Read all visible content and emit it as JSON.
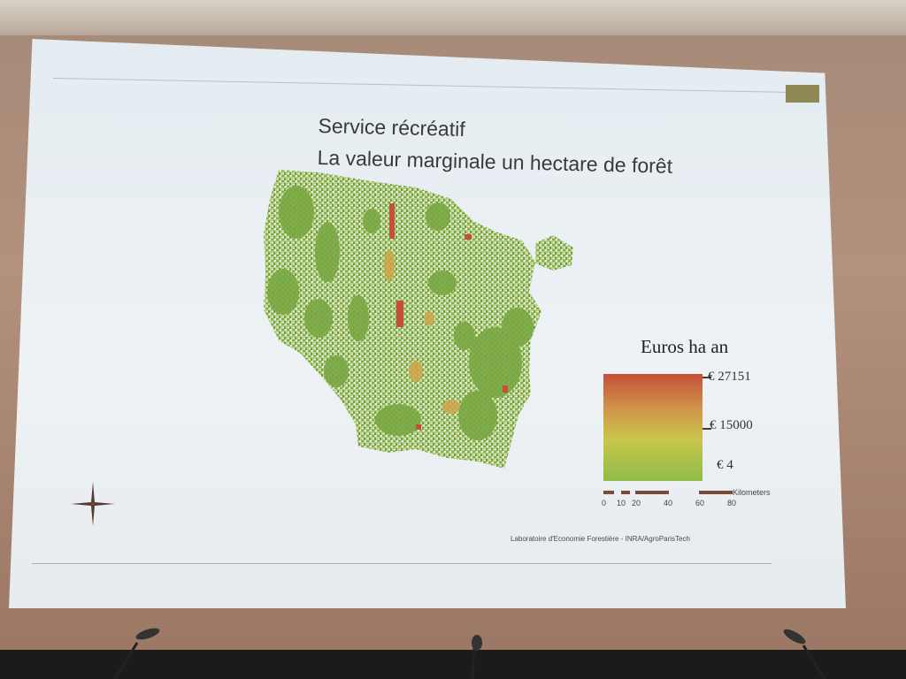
{
  "slide": {
    "title_line1": "Service récréatif",
    "title_line2": "La valeur marginale un hectare de forêt",
    "credit": "Laboratoire d'Economie Forestière - INRA/AgroParisTech"
  },
  "legend": {
    "title": "Euros ha an",
    "max_label": "€ 27151",
    "mid_label": "€ 15000",
    "min_label": "€ 4",
    "colors": {
      "high": "#c5503a",
      "mid": "#c8c64c",
      "low": "#8fbc48"
    }
  },
  "scale_bar": {
    "unit": "Kilometers",
    "ticks": [
      "0",
      "10",
      "20",
      "40",
      "60",
      "80"
    ]
  },
  "icons": {
    "compass": "compass-rose-icon",
    "microphone": "microphone-icon"
  }
}
